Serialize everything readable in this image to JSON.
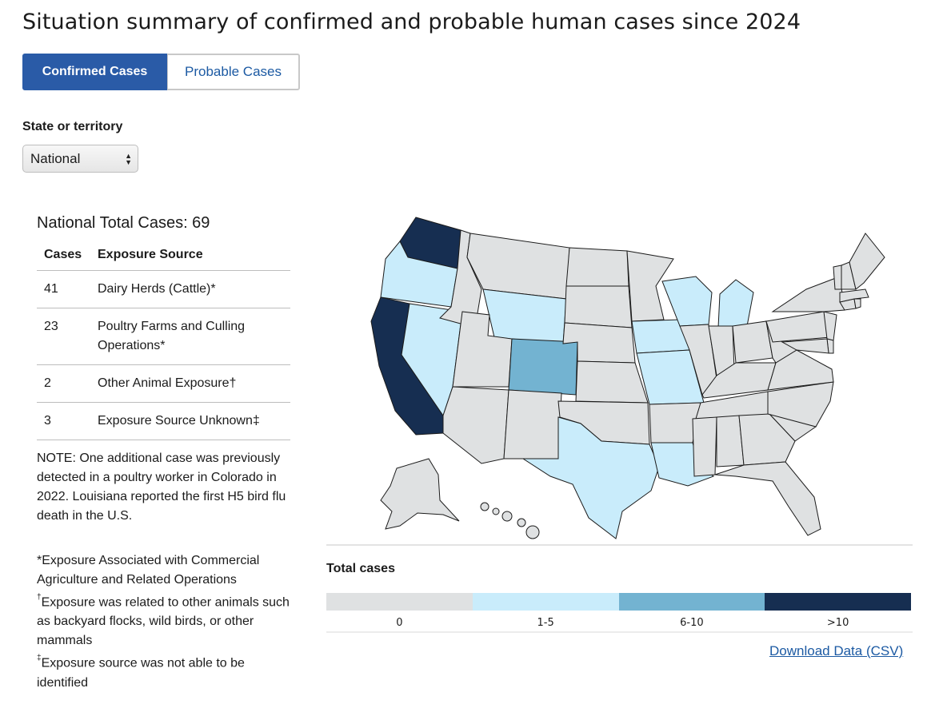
{
  "page": {
    "title": "Situation summary of confirmed and probable human cases since 2024"
  },
  "tabs": [
    {
      "label": "Confirmed Cases",
      "active": true
    },
    {
      "label": "Probable Cases",
      "active": false
    }
  ],
  "filter": {
    "label": "State or territory",
    "selected": "National"
  },
  "summary": {
    "heading": "National Total Cases: 69",
    "columns": [
      "Cases",
      "Exposure Source"
    ],
    "rows": [
      {
        "cases": "41",
        "source": "Dairy Herds (Cattle)*"
      },
      {
        "cases": "23",
        "source": "Poultry Farms and Culling Operations*"
      },
      {
        "cases": "2",
        "source": "Other Animal Exposure†"
      },
      {
        "cases": "3",
        "source": "Exposure Source Unknown‡"
      }
    ],
    "note": "NOTE: One additional case was previously detected in a poultry worker in Colorado in 2022. Louisiana reported the first H5 bird flu death in the U.S.",
    "footnotes": {
      "star": "*Exposure Associated with Commercial Agriculture and Related Operations",
      "dagger_mark": "†",
      "dagger_text": "Exposure was related to other animals such as backyard flocks, wild birds, or other mammals",
      "ddagger_mark": "‡",
      "ddagger_text": "Exposure source was not able to be identified"
    }
  },
  "map_data": {
    "state_category": {
      "WA": ">10",
      "CA": ">10",
      "CO": "6-10",
      "OR": "1-5",
      "NV": "1-5",
      "WY": "1-5",
      "TX": "1-5",
      "IA": "1-5",
      "MO": "1-5",
      "WI": "1-5",
      "MI": "1-5",
      "LA": "1-5",
      "default": "0"
    }
  },
  "legend": {
    "title": "Total cases",
    "bins": [
      {
        "label": "0",
        "color": "#dfe1e2"
      },
      {
        "label": "1-5",
        "color": "#c9ecfb"
      },
      {
        "label": "6-10",
        "color": "#73b3d1"
      },
      {
        "label": ">10",
        "color": "#162e51"
      }
    ]
  },
  "download": {
    "label": "Download Data (CSV)"
  }
}
